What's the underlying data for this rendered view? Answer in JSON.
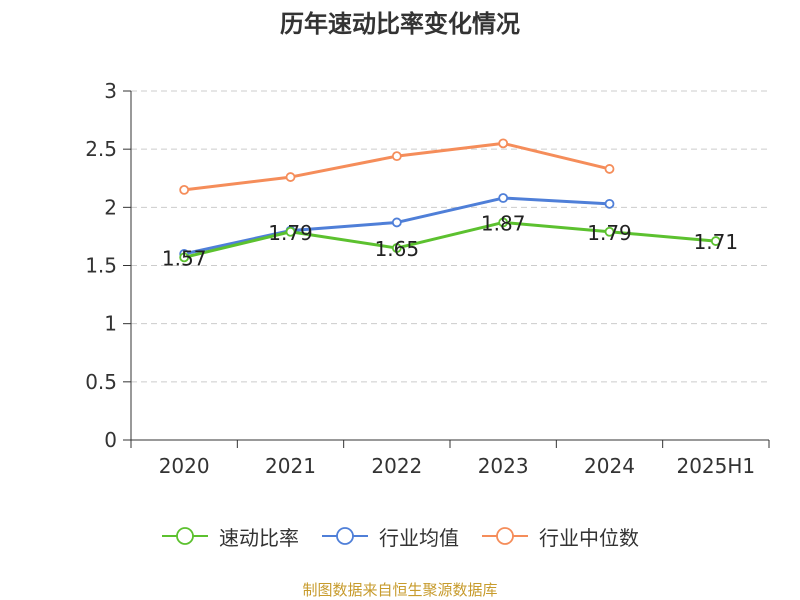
{
  "footer": {
    "source": "制图数据来自恒生聚源数据库"
  },
  "chart_data": {
    "type": "line",
    "title": "历年速动比率变化情况",
    "xlabel": "",
    "ylabel": "",
    "categories": [
      "2020",
      "2021",
      "2022",
      "2023",
      "2024",
      "2025H1"
    ],
    "ylim": [
      0,
      3
    ],
    "yticks": [
      "0",
      "0.5",
      "1",
      "1.5",
      "2",
      "2.5",
      "3"
    ],
    "grid": true,
    "legend_position": "bottom",
    "series": [
      {
        "name": "速动比率",
        "color": "#5cc12f",
        "values": [
          1.57,
          1.79,
          1.65,
          1.87,
          1.79,
          1.71
        ],
        "show_labels": true
      },
      {
        "name": "行业均值",
        "color": "#4f7fd8",
        "values": [
          1.6,
          1.8,
          1.87,
          2.08,
          2.03,
          null
        ],
        "show_labels": false
      },
      {
        "name": "行业中位数",
        "color": "#f58d5a",
        "values": [
          2.15,
          2.26,
          2.44,
          2.55,
          2.33,
          null
        ],
        "show_labels": false
      }
    ]
  }
}
